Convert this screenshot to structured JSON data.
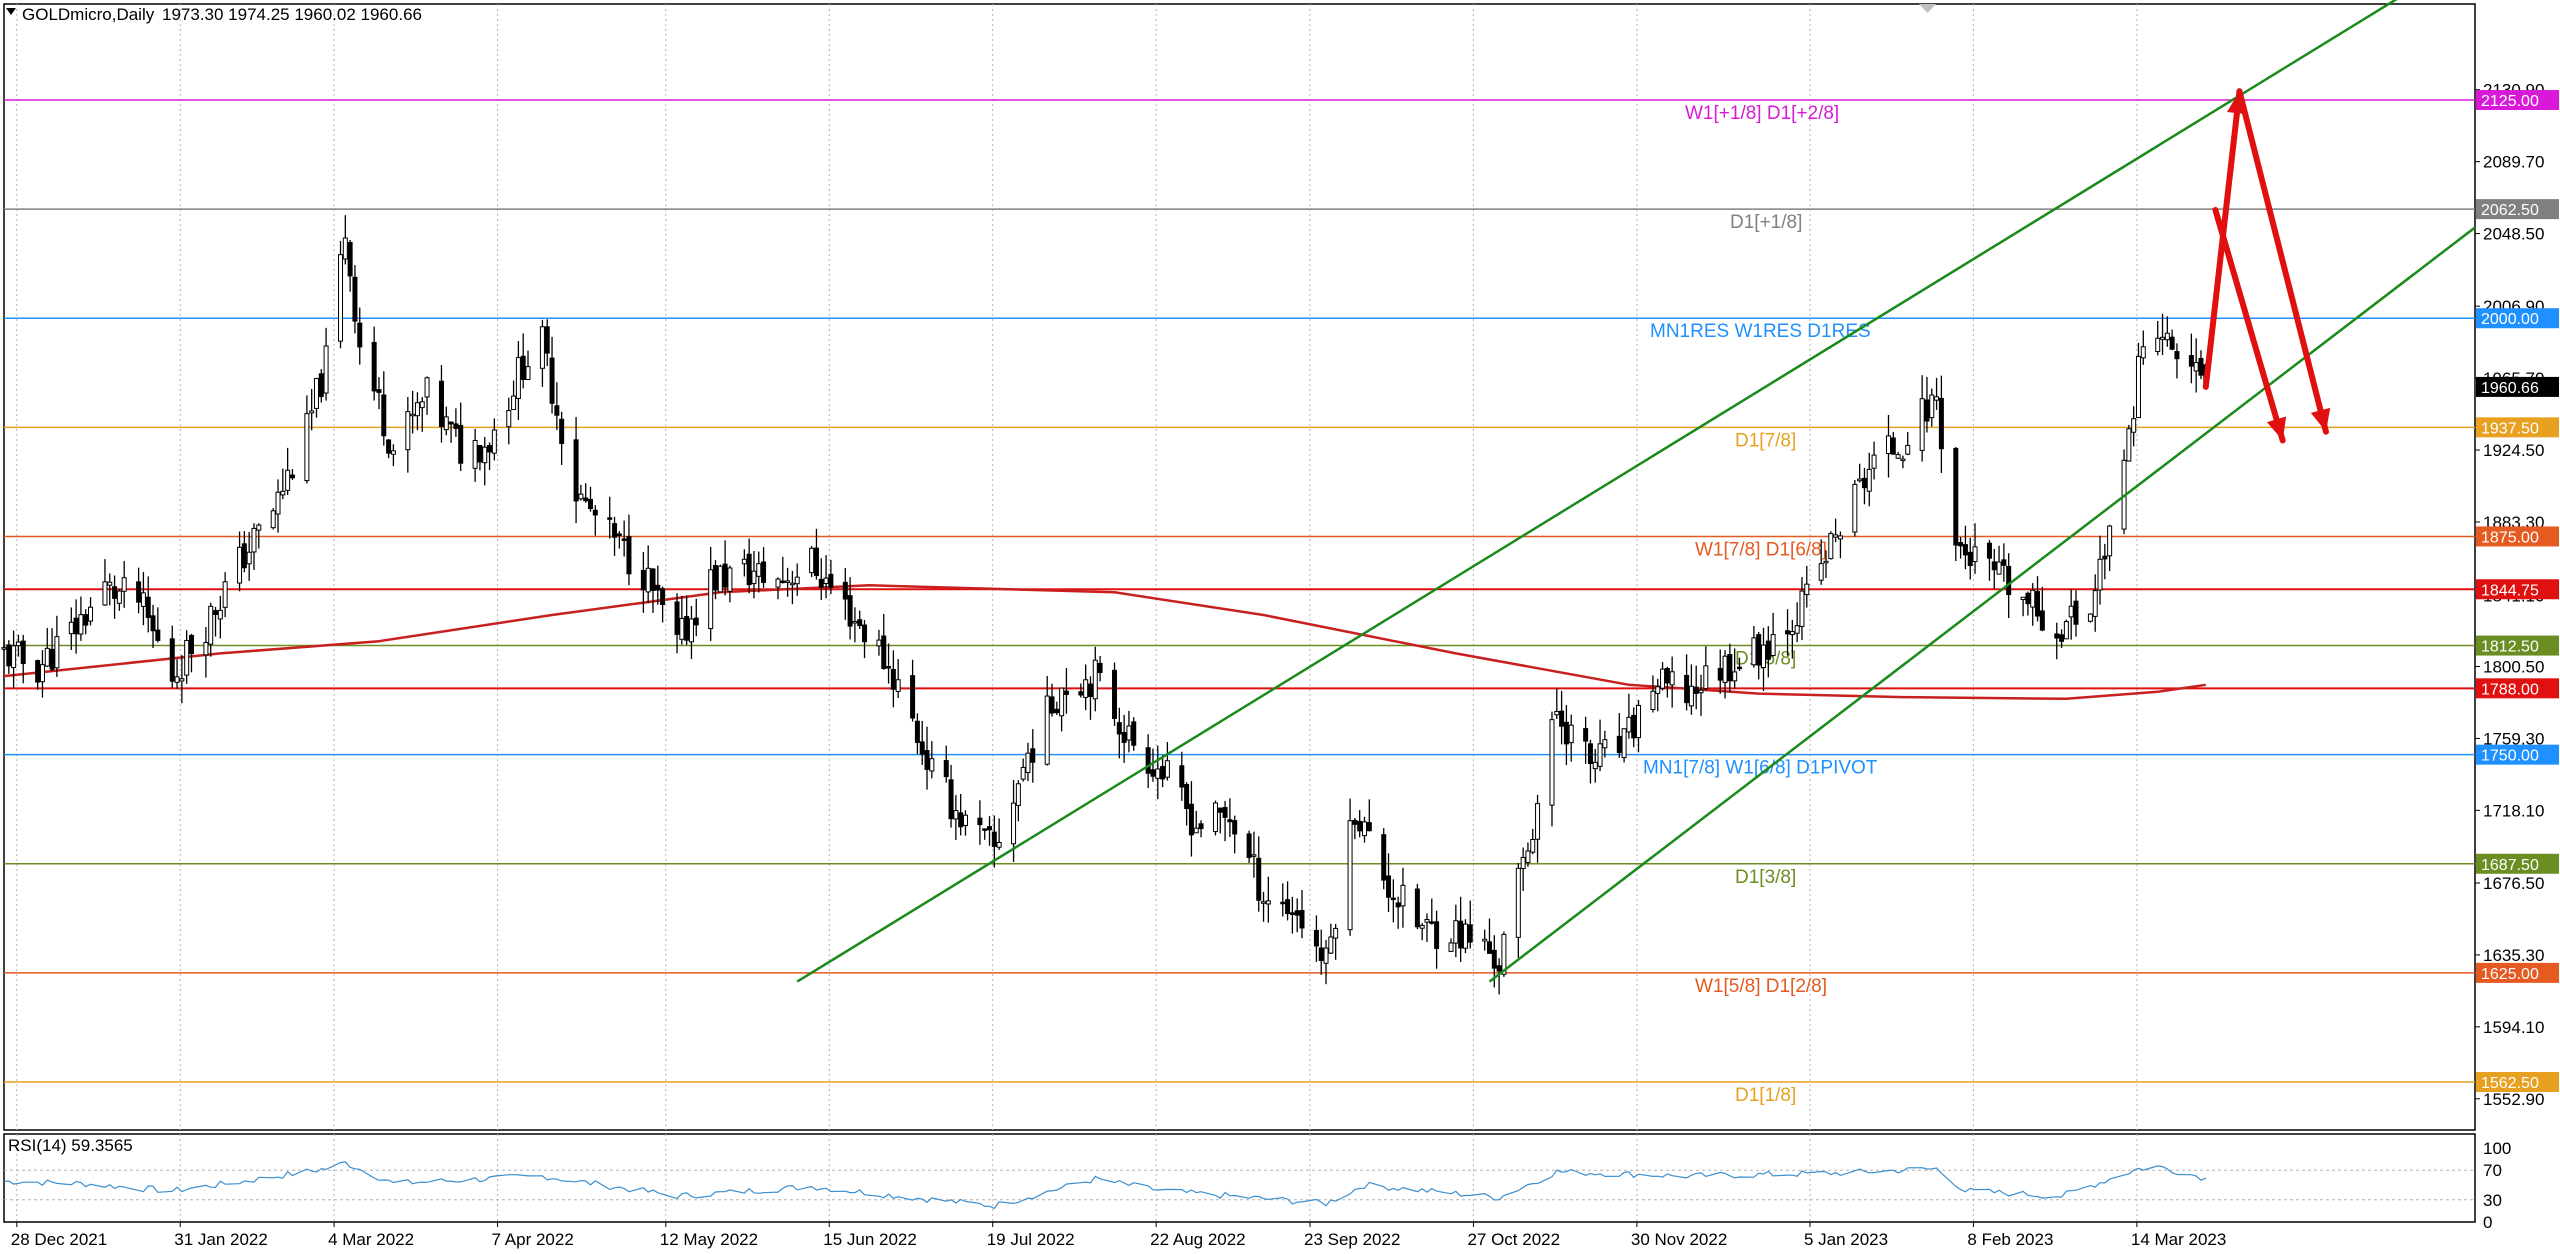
{
  "header": {
    "symbol_timeframe": "GOLDmicro,Daily",
    "ohlc": "1973.30 1974.25 1960.02 1960.66"
  },
  "chart_data": {
    "type": "candlestick",
    "symbol": "GOLDmicro",
    "timeframe": "Daily",
    "ohlc": {
      "open": 1973.3,
      "high": 1974.25,
      "low": 1960.02,
      "close": 1960.66
    },
    "current_price": 1960.66,
    "ylim": [
      1535,
      2180
    ],
    "y_ticks": [
      "2130.90",
      "2089.70",
      "2048.50",
      "2006.90",
      "1965.70",
      "1924.50",
      "1883.30",
      "1841.10",
      "1800.50",
      "1759.30",
      "1718.10",
      "1676.50",
      "1635.30",
      "1594.10",
      "1552.90"
    ],
    "x_tick_labels": [
      "28 Dec 2021",
      "31 Jan 2022",
      "4 Mar 2022",
      "7 Apr 2022",
      "12 May 2022",
      "15 Jun 2022",
      "19 Jul 2022",
      "22 Aug 2022",
      "23 Sep 2022",
      "27 Oct 2022",
      "30 Nov 2022",
      "5 Jan 2023",
      "8 Feb 2023",
      "14 Mar 2023"
    ],
    "x_tick_dates": [
      "2021-12-28",
      "2022-01-31",
      "2022-03-04",
      "2022-04-07",
      "2022-05-12",
      "2022-06-15",
      "2022-07-19",
      "2022-08-22",
      "2022-09-23",
      "2022-10-27",
      "2022-11-30",
      "2023-01-05",
      "2023-02-08",
      "2023-03-14"
    ],
    "x_range": [
      "2021-12-27",
      "2023-05-25"
    ],
    "price_path": [
      [
        "2021-12-27",
        1808
      ],
      [
        "2022-01-03",
        1800
      ],
      [
        "2022-01-10",
        1820
      ],
      [
        "2022-01-17",
        1845
      ],
      [
        "2022-01-24",
        1838
      ],
      [
        "2022-01-31",
        1795
      ],
      [
        "2022-02-07",
        1825
      ],
      [
        "2022-02-14",
        1860
      ],
      [
        "2022-02-21",
        1890
      ],
      [
        "2022-02-28",
        1935
      ],
      [
        "2022-03-04",
        1975
      ],
      [
        "2022-03-08",
        2050
      ],
      [
        "2022-03-11",
        1985
      ],
      [
        "2022-03-18",
        1925
      ],
      [
        "2022-03-25",
        1955
      ],
      [
        "2022-04-01",
        1925
      ],
      [
        "2022-04-07",
        1930
      ],
      [
        "2022-04-14",
        1975
      ],
      [
        "2022-04-18",
        1985
      ],
      [
        "2022-04-25",
        1900
      ],
      [
        "2022-05-02",
        1875
      ],
      [
        "2022-05-09",
        1855
      ],
      [
        "2022-05-16",
        1812
      ],
      [
        "2022-05-23",
        1850
      ],
      [
        "2022-05-30",
        1855
      ],
      [
        "2022-06-06",
        1850
      ],
      [
        "2022-06-13",
        1860
      ],
      [
        "2022-06-20",
        1835
      ],
      [
        "2022-06-27",
        1810
      ],
      [
        "2022-07-01",
        1790
      ],
      [
        "2022-07-08",
        1740
      ],
      [
        "2022-07-15",
        1710
      ],
      [
        "2022-07-21",
        1695
      ],
      [
        "2022-07-28",
        1750
      ],
      [
        "2022-08-04",
        1790
      ],
      [
        "2022-08-11",
        1795
      ],
      [
        "2022-08-18",
        1760
      ],
      [
        "2022-08-25",
        1740
      ],
      [
        "2022-09-01",
        1710
      ],
      [
        "2022-09-08",
        1715
      ],
      [
        "2022-09-15",
        1670
      ],
      [
        "2022-09-22",
        1660
      ],
      [
        "2022-09-28",
        1630
      ],
      [
        "2022-10-04",
        1720
      ],
      [
        "2022-10-11",
        1675
      ],
      [
        "2022-10-18",
        1650
      ],
      [
        "2022-10-24",
        1650
      ],
      [
        "2022-10-31",
        1640
      ],
      [
        "2022-11-03",
        1630
      ],
      [
        "2022-11-10",
        1710
      ],
      [
        "2022-11-15",
        1775
      ],
      [
        "2022-11-22",
        1745
      ],
      [
        "2022-11-29",
        1755
      ],
      [
        "2022-12-05",
        1790
      ],
      [
        "2022-12-12",
        1785
      ],
      [
        "2022-12-19",
        1800
      ],
      [
        "2022-12-27",
        1810
      ],
      [
        "2023-01-05",
        1835
      ],
      [
        "2023-01-12",
        1875
      ],
      [
        "2023-01-19",
        1915
      ],
      [
        "2023-01-26",
        1930
      ],
      [
        "2023-02-02",
        1955
      ],
      [
        "2023-02-06",
        1870
      ],
      [
        "2023-02-13",
        1855
      ],
      [
        "2023-02-20",
        1838
      ],
      [
        "2023-02-27",
        1822
      ],
      [
        "2023-03-06",
        1835
      ],
      [
        "2023-03-09",
        1870
      ],
      [
        "2023-03-13",
        1910
      ],
      [
        "2023-03-16",
        1975
      ],
      [
        "2023-03-20",
        1990
      ],
      [
        "2023-03-24",
        1980
      ],
      [
        "2023-03-30",
        1960.66
      ]
    ],
    "ma_line": [
      [
        "2021-12-27",
        1795
      ],
      [
        "2022-02-10",
        1808
      ],
      [
        "2022-03-15",
        1815
      ],
      [
        "2022-04-20",
        1830
      ],
      [
        "2022-05-25",
        1843
      ],
      [
        "2022-06-25",
        1847
      ],
      [
        "2022-08-15",
        1843
      ],
      [
        "2022-09-15",
        1830
      ],
      [
        "2022-10-25",
        1808
      ],
      [
        "2022-11-30",
        1790
      ],
      [
        "2022-12-27",
        1785
      ],
      [
        "2023-01-26",
        1783
      ],
      [
        "2023-03-01",
        1782
      ],
      [
        "2023-03-20",
        1786
      ],
      [
        "2023-03-30",
        1790
      ]
    ],
    "levels": [
      {
        "price": 2125.0,
        "tag": "2125.00",
        "text": "W1[+1/8] D1[+2/8]",
        "color": "#d81ad8"
      },
      {
        "price": 2062.5,
        "tag": "2062.50",
        "text": "D1[+1/8]",
        "color": "#808080"
      },
      {
        "price": 2000.0,
        "tag": "2000.00",
        "text": "MN1RES W1RES D1RES",
        "color": "#1e90ff"
      },
      {
        "price": 1937.5,
        "tag": "1937.50",
        "text": "D1[7/8]",
        "color": "#e8a020"
      },
      {
        "price": 1875.0,
        "tag": "1875.00",
        "text": "W1[7/8] D1[6/8]",
        "color": "#e45a20"
      },
      {
        "price": 1844.75,
        "tag": "1844.75",
        "text": "",
        "color": "#e01010"
      },
      {
        "price": 1812.5,
        "tag": "1812.50",
        "text": "D1[5/8]",
        "color": "#6b8e23"
      },
      {
        "price": 1788.0,
        "tag": "1788.00",
        "text": "",
        "color": "#e01010"
      },
      {
        "price": 1750.0,
        "tag": "1750.00",
        "text": "MN1[7/8] W1[6/8] D1PIVOT",
        "color": "#1e90ff"
      },
      {
        "price": 1687.5,
        "tag": "1687.50",
        "text": "D1[3/8]",
        "color": "#6b8e23"
      },
      {
        "price": 1625.0,
        "tag": "1625.00",
        "text": "W1[5/8] D1[2/8]",
        "color": "#e45a20"
      },
      {
        "price": 1562.5,
        "tag": "1562.50",
        "text": "D1[1/8]",
        "color": "#e8a020"
      }
    ],
    "channel_lines": [
      {
        "name": "upper",
        "from": [
          "2022-06-10",
          1620
        ],
        "to": [
          "2023-05-10",
          2185
        ]
      },
      {
        "name": "lower",
        "from": [
          "2022-11-01",
          1620
        ],
        "to": [
          "2023-05-25",
          2052
        ]
      }
    ],
    "forecast_arrows": [
      {
        "name": "up-big",
        "from": [
          "2023-03-30",
          1960.66
        ],
        "to": [
          "2023-04-06",
          2130
        ]
      },
      {
        "name": "down-big",
        "from": [
          "2023-04-06",
          2130
        ],
        "to": [
          "2023-04-24",
          1935
        ]
      },
      {
        "name": "down-small",
        "from": [
          "2023-04-01",
          2062
        ],
        "to": [
          "2023-04-15",
          1930
        ]
      }
    ],
    "rsi": {
      "label": "RSI(14) 59.3565",
      "period": 14,
      "value": 59.3565,
      "ylim": [
        0,
        100
      ],
      "levels": [
        "100",
        "70",
        "30",
        "0"
      ],
      "path": [
        [
          "2021-12-27",
          55
        ],
        [
          "2022-01-12",
          52
        ],
        [
          "2022-01-31",
          42
        ],
        [
          "2022-02-15",
          55
        ],
        [
          "2022-03-04",
          72
        ],
        [
          "2022-03-08",
          80
        ],
        [
          "2022-03-18",
          52
        ],
        [
          "2022-04-18",
          62
        ],
        [
          "2022-05-16",
          35
        ],
        [
          "2022-06-13",
          48
        ],
        [
          "2022-07-01",
          35
        ],
        [
          "2022-07-21",
          22
        ],
        [
          "2022-08-11",
          58
        ],
        [
          "2022-08-25",
          42
        ],
        [
          "2022-09-28",
          25
        ],
        [
          "2022-10-06",
          50
        ],
        [
          "2022-11-03",
          33
        ],
        [
          "2022-11-15",
          68
        ],
        [
          "2022-12-12",
          62
        ],
        [
          "2023-01-12",
          66
        ],
        [
          "2023-02-02",
          72
        ],
        [
          "2023-02-08",
          42
        ],
        [
          "2023-02-28",
          35
        ],
        [
          "2023-03-16",
          72
        ],
        [
          "2023-03-20",
          75
        ],
        [
          "2023-03-30",
          59.3565
        ]
      ]
    }
  }
}
